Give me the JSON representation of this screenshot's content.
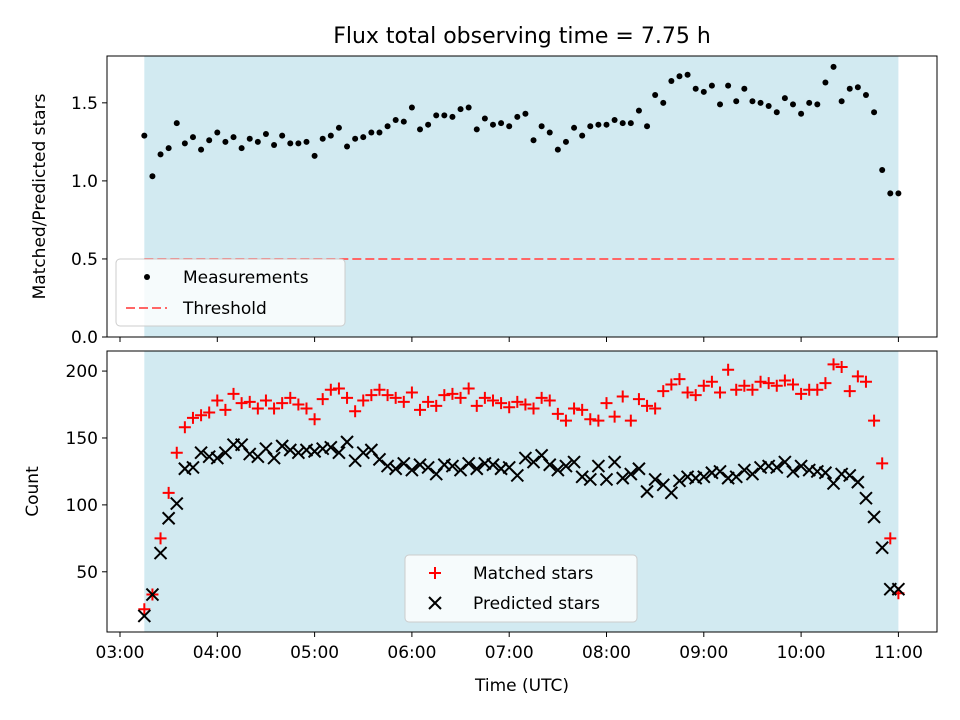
{
  "title": "Flux total observing time = 7.75 h",
  "colors": {
    "span": "#add8e6",
    "measurements": "#000000",
    "threshold": "#ff6666",
    "matched": "#ff0000",
    "predicted": "#000000"
  },
  "chart_data": [
    {
      "type": "scatter",
      "ylabel": "Matched/Predicted stars",
      "ylim": [
        0,
        1.8
      ],
      "yticks": [
        "0.0",
        "0.5",
        "1.0",
        "1.5"
      ],
      "xlim": [
        "03:20",
        "11:00"
      ],
      "observing_window": [
        "03:15",
        "11:00"
      ],
      "legend_position": "lower left",
      "legend": [
        "Measurements",
        "Threshold"
      ],
      "threshold": 0.5,
      "series": [
        {
          "name": "Measurements",
          "marker": "dot",
          "x": [
            "03:15",
            "03:20",
            "03:25",
            "03:30",
            "03:35",
            "03:40",
            "03:45",
            "03:50",
            "03:55",
            "04:00",
            "04:05",
            "04:10",
            "04:15",
            "04:20",
            "04:25",
            "04:30",
            "04:35",
            "04:40",
            "04:45",
            "04:50",
            "04:55",
            "05:00",
            "05:05",
            "05:10",
            "05:15",
            "05:20",
            "05:25",
            "05:30",
            "05:35",
            "05:40",
            "05:45",
            "05:50",
            "05:55",
            "06:00",
            "06:05",
            "06:10",
            "06:15",
            "06:20",
            "06:25",
            "06:30",
            "06:35",
            "06:40",
            "06:45",
            "06:50",
            "06:55",
            "07:00",
            "07:05",
            "07:10",
            "07:15",
            "07:20",
            "07:25",
            "07:30",
            "07:35",
            "07:40",
            "07:45",
            "07:50",
            "07:55",
            "08:00",
            "08:05",
            "08:10",
            "08:15",
            "08:20",
            "08:25",
            "08:30",
            "08:35",
            "08:40",
            "08:45",
            "08:50",
            "08:55",
            "09:00",
            "09:05",
            "09:10",
            "09:15",
            "09:20",
            "09:25",
            "09:30",
            "09:35",
            "09:40",
            "09:45",
            "09:50",
            "09:55",
            "10:00",
            "10:05",
            "10:10",
            "10:15",
            "10:20",
            "10:25",
            "10:30",
            "10:35",
            "10:40",
            "10:45",
            "10:50",
            "10:55",
            "11:00"
          ],
          "y": [
            1.29,
            1.03,
            1.17,
            1.21,
            1.37,
            1.24,
            1.28,
            1.2,
            1.26,
            1.31,
            1.25,
            1.28,
            1.21,
            1.27,
            1.25,
            1.3,
            1.23,
            1.29,
            1.24,
            1.24,
            1.25,
            1.16,
            1.27,
            1.29,
            1.34,
            1.22,
            1.27,
            1.28,
            1.31,
            1.31,
            1.35,
            1.39,
            1.38,
            1.47,
            1.33,
            1.36,
            1.42,
            1.42,
            1.41,
            1.46,
            1.47,
            1.33,
            1.4,
            1.36,
            1.37,
            1.35,
            1.41,
            1.43,
            1.26,
            1.35,
            1.31,
            1.2,
            1.25,
            1.34,
            1.29,
            1.35,
            1.36,
            1.36,
            1.39,
            1.37,
            1.37,
            1.45,
            1.35,
            1.55,
            1.5,
            1.64,
            1.67,
            1.68,
            1.59,
            1.57,
            1.61,
            1.49,
            1.61,
            1.51,
            1.59,
            1.51,
            1.5,
            1.48,
            1.44,
            1.53,
            1.49,
            1.43,
            1.5,
            1.49,
            1.63,
            1.73,
            1.51,
            1.59,
            1.6,
            1.55,
            1.44,
            1.07,
            0.92,
            0.92
          ]
        }
      ]
    },
    {
      "type": "scatter",
      "xlabel": "Time (UTC)",
      "ylabel": "Count",
      "ylim": [
        5,
        215
      ],
      "yticks": [
        "50",
        "100",
        "150",
        "200"
      ],
      "xticks": [
        "03:00",
        "04:00",
        "05:00",
        "06:00",
        "07:00",
        "08:00",
        "09:00",
        "10:00",
        "11:00"
      ],
      "legend_position": "lower center",
      "legend": [
        "Matched stars",
        "Predicted stars"
      ],
      "series": [
        {
          "name": "Matched stars",
          "marker": "plus",
          "x": [
            "03:15",
            "03:20",
            "03:25",
            "03:30",
            "03:35",
            "03:40",
            "03:45",
            "03:50",
            "03:55",
            "04:00",
            "04:05",
            "04:10",
            "04:15",
            "04:20",
            "04:25",
            "04:30",
            "04:35",
            "04:40",
            "04:45",
            "04:50",
            "04:55",
            "05:00",
            "05:05",
            "05:10",
            "05:15",
            "05:20",
            "05:25",
            "05:30",
            "05:35",
            "05:40",
            "05:45",
            "05:50",
            "05:55",
            "06:00",
            "06:05",
            "06:10",
            "06:15",
            "06:20",
            "06:25",
            "06:30",
            "06:35",
            "06:40",
            "06:45",
            "06:50",
            "06:55",
            "07:00",
            "07:05",
            "07:10",
            "07:15",
            "07:20",
            "07:25",
            "07:30",
            "07:35",
            "07:40",
            "07:45",
            "07:50",
            "07:55",
            "08:00",
            "08:05",
            "08:10",
            "08:15",
            "08:20",
            "08:25",
            "08:30",
            "08:35",
            "08:40",
            "08:45",
            "08:50",
            "08:55",
            "09:00",
            "09:05",
            "09:10",
            "09:15",
            "09:20",
            "09:25",
            "09:30",
            "09:35",
            "09:40",
            "09:45",
            "09:50",
            "09:55",
            "10:00",
            "10:05",
            "10:10",
            "10:15",
            "10:20",
            "10:25",
            "10:30",
            "10:35",
            "10:40",
            "10:45",
            "10:50",
            "10:55",
            "11:00"
          ],
          "y": [
            22,
            33,
            75,
            109,
            139,
            158,
            165,
            167,
            169,
            178,
            171,
            183,
            176,
            177,
            172,
            178,
            172,
            176,
            180,
            175,
            172,
            164,
            179,
            186,
            187,
            180,
            170,
            178,
            182,
            186,
            182,
            180,
            177,
            184,
            171,
            177,
            174,
            182,
            183,
            180,
            187,
            174,
            180,
            178,
            176,
            173,
            177,
            175,
            172,
            180,
            178,
            168,
            163,
            172,
            171,
            164,
            163,
            176,
            166,
            181,
            163,
            179,
            174,
            172,
            185,
            190,
            194,
            184,
            182,
            189,
            192,
            184,
            201,
            186,
            189,
            186,
            192,
            191,
            189,
            193,
            190,
            183,
            186,
            186,
            191,
            205,
            203,
            185,
            196,
            192,
            163,
            131,
            75,
            34
          ]
        },
        {
          "name": "Predicted stars",
          "marker": "x",
          "x": [
            "03:15",
            "03:20",
            "03:25",
            "03:30",
            "03:35",
            "03:40",
            "03:45",
            "03:50",
            "03:55",
            "04:00",
            "04:05",
            "04:10",
            "04:15",
            "04:20",
            "04:25",
            "04:30",
            "04:35",
            "04:40",
            "04:45",
            "04:50",
            "04:55",
            "05:00",
            "05:05",
            "05:10",
            "05:15",
            "05:20",
            "05:25",
            "05:30",
            "05:35",
            "05:40",
            "05:45",
            "05:50",
            "05:55",
            "06:00",
            "06:05",
            "06:10",
            "06:15",
            "06:20",
            "06:25",
            "06:30",
            "06:35",
            "06:40",
            "06:45",
            "06:50",
            "06:55",
            "07:00",
            "07:05",
            "07:10",
            "07:15",
            "07:20",
            "07:25",
            "07:30",
            "07:35",
            "07:40",
            "07:45",
            "07:50",
            "07:55",
            "08:00",
            "08:05",
            "08:10",
            "08:15",
            "08:20",
            "08:25",
            "08:30",
            "08:35",
            "08:40",
            "08:45",
            "08:50",
            "08:55",
            "09:00",
            "09:05",
            "09:10",
            "09:15",
            "09:20",
            "09:25",
            "09:30",
            "09:35",
            "09:40",
            "09:45",
            "09:50",
            "09:55",
            "10:00",
            "10:05",
            "10:10",
            "10:15",
            "10:20",
            "10:25",
            "10:30",
            "10:35",
            "10:40",
            "10:45",
            "10:50",
            "10:55",
            "11:00"
          ],
          "y": [
            17,
            33,
            64,
            90,
            101,
            127,
            128,
            139,
            136,
            135,
            139,
            145,
            145,
            138,
            136,
            142,
            135,
            144,
            141,
            139,
            141,
            140,
            142,
            143,
            139,
            147,
            133,
            139,
            141,
            134,
            129,
            127,
            131,
            126,
            130,
            128,
            123,
            130,
            129,
            126,
            131,
            127,
            131,
            130,
            127,
            128,
            122,
            135,
            132,
            137,
            130,
            126,
            129,
            132,
            121,
            119,
            129,
            119,
            132,
            120,
            123,
            127,
            110,
            119,
            115,
            109,
            118,
            121,
            120,
            121,
            124,
            125,
            120,
            121,
            126,
            123,
            128,
            129,
            128,
            132,
            125,
            129,
            126,
            125,
            124,
            116,
            123,
            122,
            117,
            105,
            91,
            68,
            37,
            37
          ]
        }
      ]
    }
  ]
}
